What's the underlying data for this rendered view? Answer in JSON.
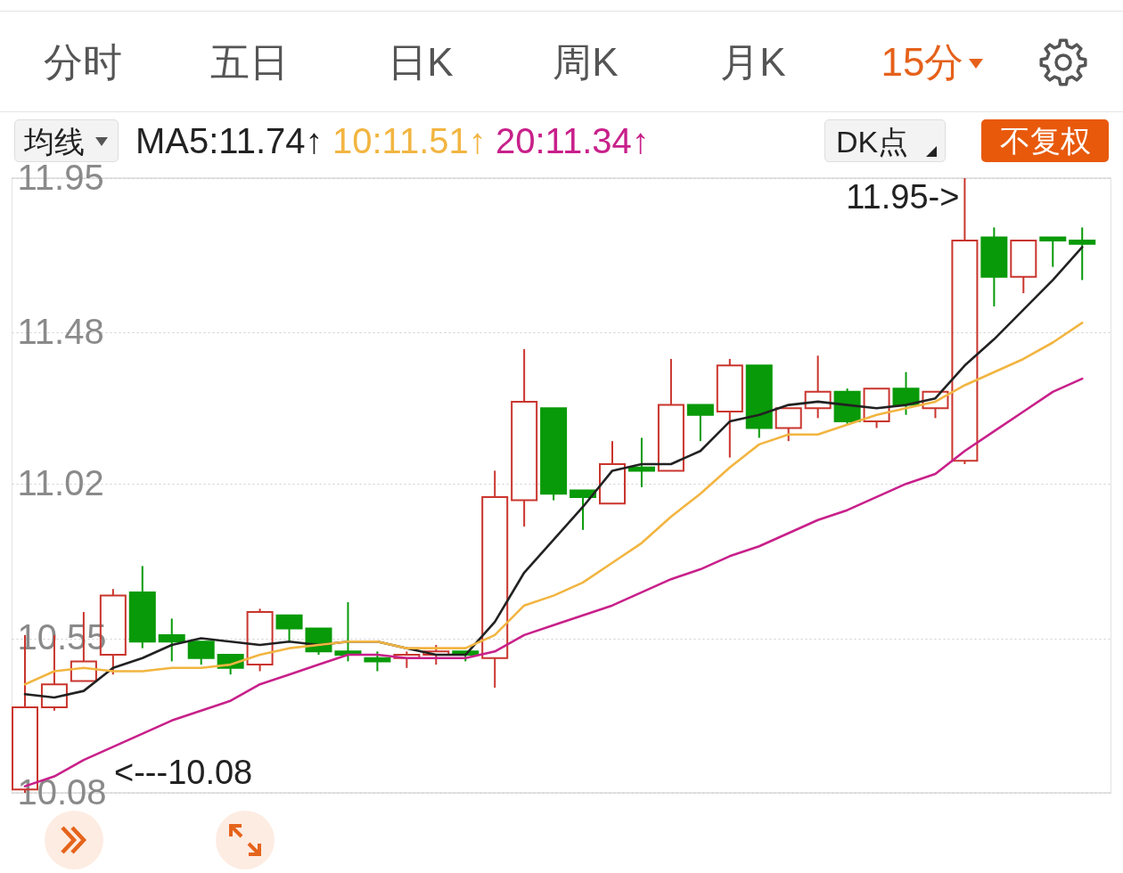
{
  "chart_data": {
    "type": "candlestick",
    "categories": [
      null,
      null,
      null,
      null,
      null,
      null,
      null,
      null,
      null,
      null,
      null,
      null,
      null,
      null,
      null,
      null,
      null,
      null,
      null,
      null,
      null,
      null,
      null,
      null,
      null,
      null,
      null,
      null,
      null,
      null,
      null,
      null,
      null,
      null,
      null,
      null,
      null
    ],
    "ohlc": [
      [
        10.09,
        10.56,
        10.08,
        10.34
      ],
      [
        10.34,
        10.56,
        10.33,
        10.41
      ],
      [
        10.42,
        10.63,
        10.42,
        10.48
      ],
      [
        10.5,
        10.7,
        10.44,
        10.68
      ],
      [
        10.69,
        10.77,
        10.52,
        10.54
      ],
      [
        10.56,
        10.61,
        10.48,
        10.54
      ],
      [
        10.54,
        10.54,
        10.47,
        10.49
      ],
      [
        10.5,
        10.5,
        10.44,
        10.46
      ],
      [
        10.47,
        10.64,
        10.45,
        10.63
      ],
      [
        10.62,
        10.62,
        10.54,
        10.58
      ],
      [
        10.58,
        10.58,
        10.5,
        10.51
      ],
      [
        10.51,
        10.66,
        10.48,
        10.5
      ],
      [
        10.49,
        10.51,
        10.45,
        10.48
      ],
      [
        10.49,
        10.51,
        10.46,
        10.5
      ],
      [
        10.5,
        10.53,
        10.47,
        10.51
      ],
      [
        10.51,
        10.51,
        10.48,
        10.5
      ],
      [
        10.49,
        11.06,
        10.4,
        10.98
      ],
      [
        10.97,
        11.43,
        10.89,
        11.27
      ],
      [
        11.25,
        11.25,
        10.97,
        10.99
      ],
      [
        11.0,
        11.0,
        10.88,
        10.98
      ],
      [
        10.96,
        11.15,
        10.96,
        11.08
      ],
      [
        11.07,
        11.16,
        11.01,
        11.06
      ],
      [
        11.06,
        11.4,
        11.06,
        11.26
      ],
      [
        11.26,
        11.26,
        11.15,
        11.23
      ],
      [
        11.24,
        11.4,
        11.1,
        11.38
      ],
      [
        11.38,
        11.38,
        11.16,
        11.19
      ],
      [
        11.19,
        11.25,
        11.15,
        11.25
      ],
      [
        11.25,
        11.41,
        11.22,
        11.3
      ],
      [
        11.3,
        11.31,
        11.2,
        11.21
      ],
      [
        11.21,
        11.31,
        11.19,
        11.31
      ],
      [
        11.31,
        11.36,
        11.23,
        11.26
      ],
      [
        11.25,
        11.3,
        11.22,
        11.3
      ],
      [
        11.09,
        11.95,
        11.08,
        11.76
      ],
      [
        11.77,
        11.8,
        11.56,
        11.65
      ],
      [
        11.65,
        11.76,
        11.6,
        11.76
      ],
      [
        11.77,
        11.77,
        11.68,
        11.76
      ],
      [
        11.76,
        11.8,
        11.64,
        11.75
      ]
    ],
    "colors": [
      "#c9352d",
      "#c9352d",
      "#c9352d",
      "#c9352d",
      "#089a08",
      "#089a08",
      "#089a08",
      "#089a08",
      "#c9352d",
      "#089a08",
      "#089a08",
      "#089a08",
      "#089a08",
      "#c9352d",
      "#c9352d",
      "#089a08",
      "#c9352d",
      "#c9352d",
      "#089a08",
      "#089a08",
      "#c9352d",
      "#089a08",
      "#c9352d",
      "#089a08",
      "#c9352d",
      "#089a08",
      "#c9352d",
      "#c9352d",
      "#089a08",
      "#c9352d",
      "#089a08",
      "#c9352d",
      "#c9352d",
      "#089a08",
      "#c9352d",
      "#089a08",
      "#089a08"
    ],
    "series": [
      {
        "name": "MA5:11.74↑",
        "type": "line",
        "color": "#222222",
        "values": [
          10.38,
          10.37,
          10.39,
          10.46,
          10.49,
          10.53,
          10.55,
          10.54,
          10.53,
          10.54,
          10.53,
          10.54,
          10.54,
          10.52,
          10.5,
          10.5,
          10.6,
          10.75,
          10.85,
          10.95,
          11.06,
          11.08,
          11.08,
          11.12,
          11.21,
          11.23,
          11.26,
          11.27,
          11.26,
          11.25,
          11.26,
          11.28,
          11.38,
          11.46,
          11.55,
          11.64,
          11.74
        ]
      },
      {
        "name": "10:11.51↑",
        "type": "line",
        "color": "#f2b541",
        "values": [
          10.41,
          10.45,
          10.46,
          10.45,
          10.45,
          10.46,
          10.46,
          10.47,
          10.5,
          10.52,
          10.53,
          10.54,
          10.54,
          10.52,
          10.52,
          10.52,
          10.56,
          10.65,
          10.68,
          10.72,
          10.78,
          10.84,
          10.92,
          10.99,
          11.07,
          11.14,
          11.17,
          11.17,
          11.2,
          11.23,
          11.25,
          11.27,
          11.32,
          11.36,
          11.4,
          11.45,
          11.51
        ]
      },
      {
        "name": "20:11.34↑",
        "type": "line",
        "color": "#c8208a",
        "values": [
          10.1,
          10.13,
          10.18,
          10.22,
          10.26,
          10.3,
          10.33,
          10.36,
          10.41,
          10.44,
          10.47,
          10.5,
          10.5,
          10.49,
          10.49,
          10.49,
          10.51,
          10.56,
          10.59,
          10.62,
          10.65,
          10.69,
          10.73,
          10.76,
          10.8,
          10.83,
          10.87,
          10.91,
          10.94,
          10.98,
          11.02,
          11.05,
          11.12,
          11.18,
          11.24,
          11.3,
          11.34
        ]
      }
    ],
    "ylim": [
      10.08,
      11.95
    ],
    "yticks": [
      10.08,
      10.55,
      11.02,
      11.48,
      11.95
    ],
    "grid": "y",
    "legend": "top left",
    "tick_labels": "y",
    "line_style": "solid",
    "annotations": [
      "分时",
      "五日",
      "日K",
      "周K",
      "月K",
      "15分",
      "均线",
      "DK点",
      "不复权",
      "11.95->",
      "<---10.08"
    ]
  }
}
